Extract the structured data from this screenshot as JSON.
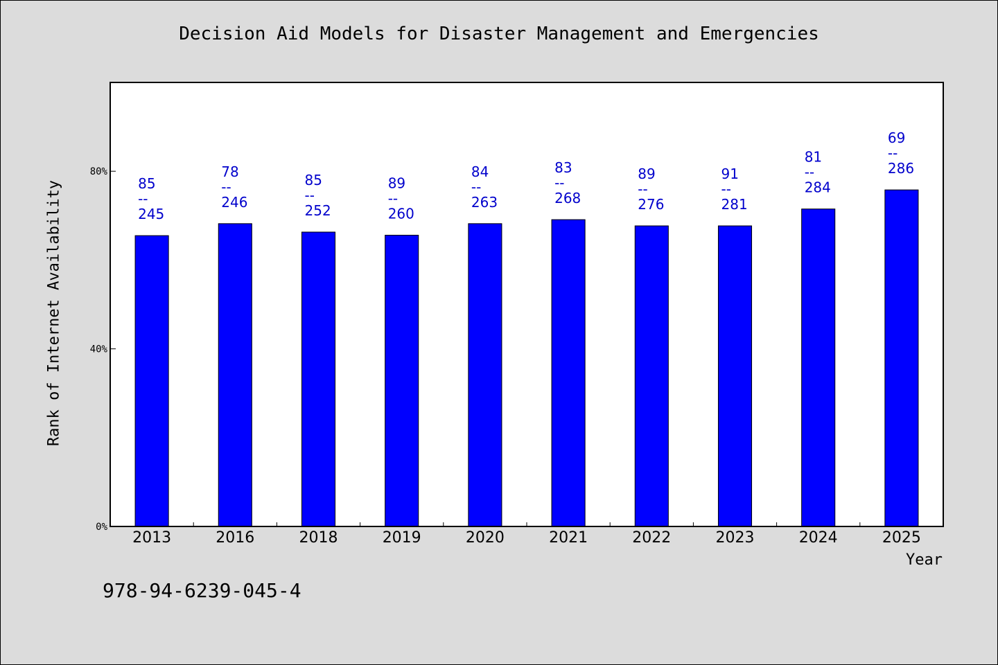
{
  "chart_data": {
    "type": "bar",
    "title": "Decision Aid Models for Disaster Management and Emergencies",
    "xlabel": "Year",
    "ylabel": "Rank of Internet Availability",
    "ylim": [
      0,
      100
    ],
    "yticks": [
      {
        "value": 0,
        "label": "0%"
      },
      {
        "value": 40,
        "label": "40%"
      },
      {
        "value": 80,
        "label": "80%"
      }
    ],
    "categories": [
      "2013",
      "2016",
      "2018",
      "2019",
      "2020",
      "2021",
      "2022",
      "2023",
      "2024",
      "2025"
    ],
    "values": [
      65.5,
      68.2,
      66.3,
      65.6,
      68.2,
      69.1,
      67.7,
      67.7,
      71.5,
      75.8
    ],
    "annotations": [
      {
        "top": "85",
        "sep": "--",
        "bottom": "245"
      },
      {
        "top": "78",
        "sep": "--",
        "bottom": "246"
      },
      {
        "top": "85",
        "sep": "--",
        "bottom": "252"
      },
      {
        "top": "89",
        "sep": "--",
        "bottom": "260"
      },
      {
        "top": "84",
        "sep": "--",
        "bottom": "263"
      },
      {
        "top": "83",
        "sep": "--",
        "bottom": "268"
      },
      {
        "top": "89",
        "sep": "--",
        "bottom": "276"
      },
      {
        "top": "91",
        "sep": "--",
        "bottom": "281"
      },
      {
        "top": "81",
        "sep": "--",
        "bottom": "284"
      },
      {
        "top": "69",
        "sep": "--",
        "bottom": "286"
      }
    ],
    "bar_color": "#0000ff",
    "annotation_color": "#0000cc",
    "grid": false,
    "legend": "none"
  },
  "footer": {
    "isbn": "978-94-6239-045-4"
  }
}
